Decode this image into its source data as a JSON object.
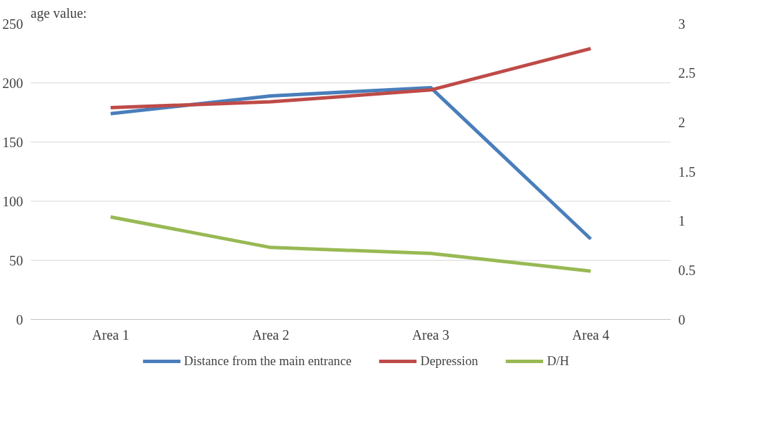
{
  "chart_data": {
    "type": "line",
    "annotations": [
      "age value:"
    ],
    "categories": [
      "Area 1",
      "Area 2",
      "Area 3",
      "Area 4"
    ],
    "series": [
      {
        "name": "Distance from the main entrance",
        "color": "#4a7ebb",
        "values": [
          174,
          189,
          196,
          68
        ]
      },
      {
        "name": "Depression",
        "color": "#be4b48",
        "values": [
          179,
          184,
          194,
          229
        ]
      },
      {
        "name": "D/H",
        "color": "#98b954",
        "values": [
          1.04,
          0.73,
          0.67,
          0.49
        ],
        "axis": "y2"
      }
    ],
    "ylim": [
      0,
      250
    ],
    "yticks": [
      0,
      50,
      100,
      150,
      200,
      250
    ],
    "y2lim": [
      0,
      3
    ],
    "y2ticks": [
      0,
      0.5,
      1,
      1.5,
      2,
      2.5,
      3
    ],
    "grid": "y",
    "legend": "bottom",
    "marker": "none",
    "line_style": "solid"
  }
}
